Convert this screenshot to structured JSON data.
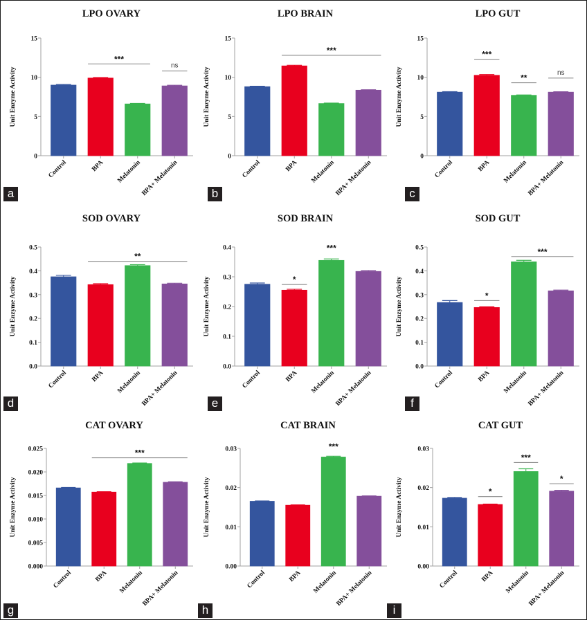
{
  "figure": {
    "colors": {
      "Control": "#34559e",
      "BPA": "#e8001e",
      "Melatonin": "#38b44e",
      "BPA+ Melatonin": "#844f9b",
      "axis": "#a0a0a0",
      "sig_line": "#8c8c8c",
      "label_bg": "#231f20"
    }
  },
  "chart_data": [
    {
      "panel": "a",
      "type": "bar",
      "title": "LPO OVARY",
      "ylabel": "Unit Enzyme Activity",
      "xlabel": "",
      "categories": [
        "Control",
        "BPA",
        "Melatonin",
        "BPA+ Melatonin"
      ],
      "values": [
        9.0,
        9.9,
        6.6,
        8.9
      ],
      "errors": [
        0.08,
        0.06,
        0.06,
        0.08
      ],
      "ylim": [
        0,
        15
      ],
      "yticks": [
        "0",
        "5",
        "10",
        "15"
      ],
      "ytick_values": [
        0,
        5,
        10,
        15
      ],
      "grid": false,
      "annotations": [
        {
          "text": "***",
          "from": 1,
          "to": 2,
          "y": 11.7
        },
        {
          "text": "ns",
          "from": 3,
          "to": 3,
          "y": 10.8
        }
      ]
    },
    {
      "panel": "b",
      "type": "bar",
      "title": "LPO BRAIN",
      "ylabel": "Unit Enzyme Activity",
      "xlabel": "",
      "categories": [
        "Control",
        "BPA",
        "Melatonin",
        "BPA+ Melatonin"
      ],
      "values": [
        8.8,
        11.45,
        6.65,
        8.35
      ],
      "errors": [
        0.06,
        0.08,
        0.06,
        0.06
      ],
      "ylim": [
        0,
        15
      ],
      "yticks": [
        "0",
        "5",
        "10",
        "15"
      ],
      "ytick_values": [
        0,
        5,
        10,
        15
      ],
      "grid": false,
      "annotations": [
        {
          "text": "***",
          "from": 1,
          "to": 3,
          "y": 12.8
        }
      ]
    },
    {
      "panel": "c",
      "type": "bar",
      "title": "LPO GUT",
      "ylabel": "Unit Enzyme Activity",
      "xlabel": "",
      "categories": [
        "Control",
        "BPA",
        "Melatonin",
        "BPA+ Melatonin"
      ],
      "values": [
        8.1,
        10.25,
        7.7,
        8.1
      ],
      "errors": [
        0.06,
        0.1,
        0.05,
        0.05
      ],
      "ylim": [
        0,
        15
      ],
      "yticks": [
        "0",
        "5",
        "10",
        "15"
      ],
      "ytick_values": [
        0,
        5,
        10,
        15
      ],
      "grid": false,
      "annotations": [
        {
          "text": "***",
          "from": 1,
          "to": 1,
          "y": 12.3
        },
        {
          "text": "**",
          "from": 2,
          "to": 2,
          "y": 9.3
        },
        {
          "text": "ns",
          "from": 3,
          "to": 3,
          "y": 9.9
        }
      ]
    },
    {
      "panel": "d",
      "type": "bar",
      "title": "SOD OVARY",
      "ylabel": "Unit Enzyme Activity",
      "xlabel": "",
      "categories": [
        "Control",
        "BPA",
        "Melatonin",
        "BPA+ Melatonin"
      ],
      "values": [
        0.375,
        0.342,
        0.422,
        0.345
      ],
      "errors": [
        0.006,
        0.004,
        0.004,
        0.003
      ],
      "ylim": [
        0,
        0.5
      ],
      "yticks": [
        "0.0",
        "0.1",
        "0.2",
        "0.3",
        "0.4",
        "0.5"
      ],
      "ytick_values": [
        0,
        0.1,
        0.2,
        0.3,
        0.4,
        0.5
      ],
      "grid": false,
      "annotations": [
        {
          "text": "**",
          "from": 1,
          "to": 3,
          "y": 0.44
        }
      ]
    },
    {
      "panel": "e",
      "type": "bar",
      "title": "SOD BRAIN",
      "ylabel": "Unit Enzyme Activity",
      "xlabel": "",
      "categories": [
        "Control",
        "BPA",
        "Melatonin",
        "BPA+ Melatonin"
      ],
      "values": [
        0.275,
        0.255,
        0.355,
        0.318
      ],
      "errors": [
        0.004,
        0.003,
        0.005,
        0.003
      ],
      "ylim": [
        0,
        0.4
      ],
      "yticks": [
        "0.0",
        "0.1",
        "0.2",
        "0.3",
        "0.4"
      ],
      "ytick_values": [
        0,
        0.1,
        0.2,
        0.3,
        0.4
      ],
      "grid": false,
      "annotations": [
        {
          "text": "*",
          "from": 1,
          "to": 1,
          "y": 0.274
        },
        {
          "text": "***",
          "from": 2,
          "to": 2,
          "y": 0.38,
          "no_line": true
        }
      ]
    },
    {
      "panel": "f",
      "type": "bar",
      "title": "SOD GUT",
      "ylabel": "Unit Enzyme Activity",
      "xlabel": "",
      "categories": [
        "Control",
        "BPA",
        "Melatonin",
        "BPA+ Melatonin"
      ],
      "values": [
        0.267,
        0.246,
        0.438,
        0.316
      ],
      "errors": [
        0.008,
        0.003,
        0.006,
        0.003
      ],
      "ylim": [
        0,
        0.5
      ],
      "yticks": [
        "0.0",
        "0.1",
        "0.2",
        "0.3",
        "0.4",
        "0.5"
      ],
      "ytick_values": [
        0,
        0.1,
        0.2,
        0.3,
        0.4,
        0.5
      ],
      "grid": false,
      "annotations": [
        {
          "text": "*",
          "from": 1,
          "to": 1,
          "y": 0.275
        },
        {
          "text": "***",
          "from": 2,
          "to": 3,
          "y": 0.46
        }
      ]
    },
    {
      "panel": "g",
      "type": "bar",
      "title": "CAT OVARY",
      "ylabel": "Unit Enzyme Activity",
      "xlabel": "",
      "categories": [
        "Control",
        "BPA",
        "Melatonin",
        "BPA+ Melatonin"
      ],
      "values": [
        0.0166,
        0.0157,
        0.0218,
        0.0178
      ],
      "errors": [
        0.0001,
        0.0001,
        0.0001,
        0.0001
      ],
      "ylim": [
        0,
        0.025
      ],
      "yticks": [
        "0.000",
        "0.005",
        "0.010",
        "0.015",
        "0.020",
        "0.025"
      ],
      "ytick_values": [
        0,
        0.005,
        0.01,
        0.015,
        0.02,
        0.025
      ],
      "grid": false,
      "annotations": [
        {
          "text": "***",
          "from": 1,
          "to": 3,
          "y": 0.023
        }
      ]
    },
    {
      "panel": "h",
      "type": "bar",
      "title": "CAT BRAIN",
      "ylabel": "Unit Enzyme Activity",
      "xlabel": "",
      "categories": [
        "Control",
        "BPA",
        "Melatonin",
        "BPA+ Melatonin"
      ],
      "values": [
        0.0165,
        0.0155,
        0.0278,
        0.0178
      ],
      "errors": [
        0.0001,
        0.0001,
        0.0002,
        0.0001
      ],
      "ylim": [
        0,
        0.03
      ],
      "yticks": [
        "0.00",
        "0.01",
        "0.02",
        "0.03"
      ],
      "ytick_values": [
        0,
        0.01,
        0.02,
        0.03
      ],
      "grid": false,
      "annotations": [
        {
          "text": "***",
          "from": 2,
          "to": 2,
          "y": 0.0292,
          "no_line": true
        }
      ]
    },
    {
      "panel": "i",
      "type": "bar",
      "title": "CAT GUT",
      "ylabel": "Unit Enzyme Activity",
      "xlabel": "",
      "categories": [
        "Control",
        "BPA",
        "Melatonin",
        "BPA+ Melatonin"
      ],
      "values": [
        0.0173,
        0.0157,
        0.0241,
        0.0191
      ],
      "errors": [
        0.0002,
        0.0001,
        0.0007,
        0.0002
      ],
      "ylim": [
        0,
        0.03
      ],
      "yticks": [
        "0.00",
        "0.01",
        "0.02",
        "0.03"
      ],
      "ytick_values": [
        0,
        0.01,
        0.02,
        0.03
      ],
      "grid": false,
      "annotations": [
        {
          "text": "*",
          "from": 1,
          "to": 1,
          "y": 0.0177
        },
        {
          "text": "***",
          "from": 2,
          "to": 2,
          "y": 0.0264
        },
        {
          "text": "*",
          "from": 3,
          "to": 3,
          "y": 0.021
        }
      ]
    }
  ]
}
